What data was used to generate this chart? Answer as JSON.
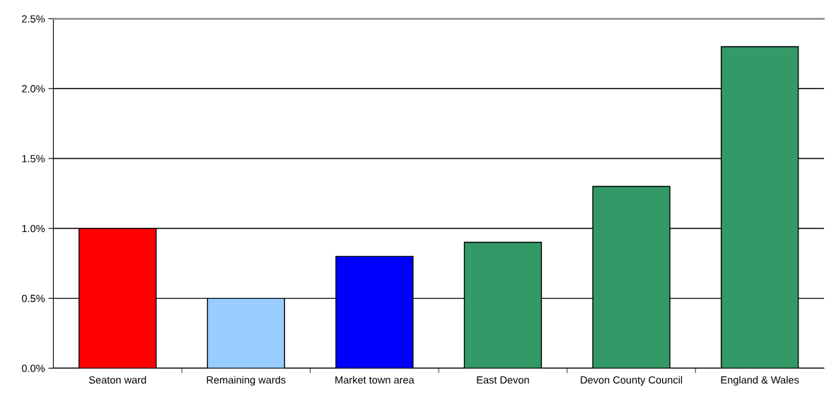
{
  "chart_data": {
    "type": "bar",
    "categories": [
      "Seaton ward",
      "Remaining wards",
      "Market town area",
      "East Devon",
      "Devon County Council",
      "England & Wales"
    ],
    "values": [
      1.0,
      0.5,
      0.8,
      0.9,
      1.3,
      2.3
    ],
    "colors": [
      "#ff0000",
      "#99ccff",
      "#0000ff",
      "#339966",
      "#339966",
      "#339966"
    ],
    "ylim": [
      0,
      2.5
    ],
    "yticks": [
      {
        "value": 0,
        "label": "0.0%"
      },
      {
        "value": 0.5,
        "label": "0.5%"
      },
      {
        "value": 1.0,
        "label": "1.0%"
      },
      {
        "value": 1.5,
        "label": "1.5%"
      },
      {
        "value": 2.0,
        "label": "2.0%"
      },
      {
        "value": 2.5,
        "label": "2.5%"
      }
    ],
    "grid": "y",
    "legend": false
  }
}
